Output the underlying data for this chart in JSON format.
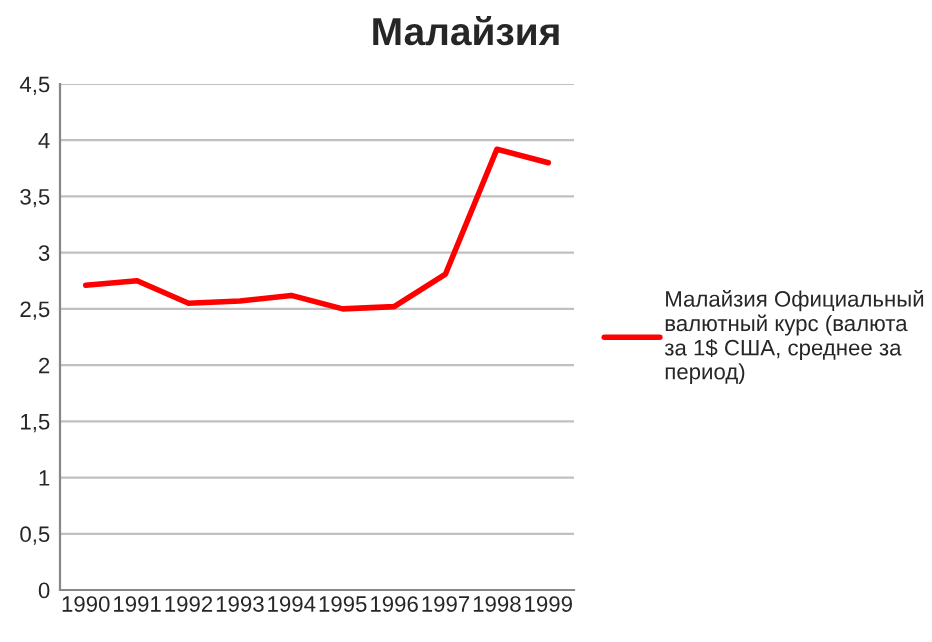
{
  "chart_data": {
    "type": "line",
    "title": "Малайзия",
    "categories": [
      "1990",
      "1991",
      "1992",
      "1993",
      "1994",
      "1995",
      "1996",
      "1997",
      "1998",
      "1999"
    ],
    "series": [
      {
        "name": "Малайзия Официальный\nвалютный курс (валюта\nза 1$ США, среднее за\nпериод)",
        "color": "#ff0000",
        "values": [
          2.71,
          2.75,
          2.55,
          2.57,
          2.62,
          2.5,
          2.52,
          2.81,
          3.92,
          3.8
        ]
      }
    ],
    "ylim": [
      0,
      4.5
    ],
    "yticks": [
      0,
      {
        "value": 0.5,
        "label": "0,5"
      },
      1,
      {
        "value": 1.5,
        "label": "1,5"
      },
      2,
      {
        "value": 2.5,
        "label": "2,5"
      },
      3,
      {
        "value": 3.5,
        "label": "3,5"
      },
      4,
      {
        "value": 4.5,
        "label": "4,5"
      }
    ],
    "grid": "y",
    "legend": "right",
    "marker": "none",
    "line_style": "solid"
  }
}
